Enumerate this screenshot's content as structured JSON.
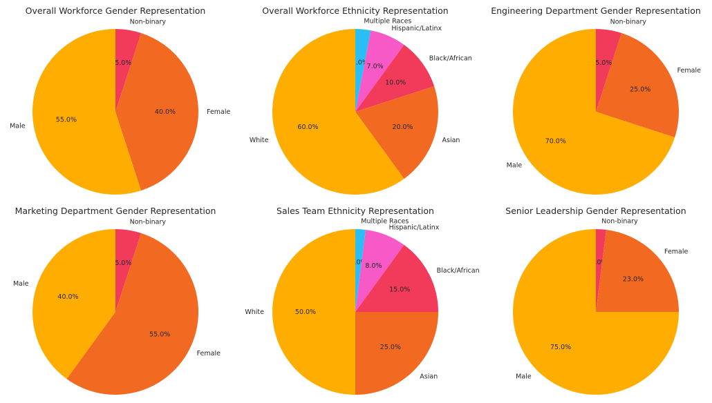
{
  "colors": {
    "male": "#FFAD00",
    "female": "#F26A22",
    "non_binary": "#F23B5A",
    "white": "#FFAD00",
    "asian": "#F26A22",
    "black_african": "#F23B5A",
    "hispanic_latinx": "#F75AC6",
    "multiple_races": "#2BBEF5"
  },
  "chart_data": [
    {
      "type": "pie",
      "title": "Overall Workforce Gender Representation",
      "slices": [
        {
          "label": "Non-binary",
          "value": 5.0,
          "pct_text": "5.0%",
          "color_key": "non_binary"
        },
        {
          "label": "Female",
          "value": 40.0,
          "pct_text": "40.0%",
          "color_key": "female"
        },
        {
          "label": "Male",
          "value": 55.0,
          "pct_text": "55.0%",
          "color_key": "male"
        }
      ]
    },
    {
      "type": "pie",
      "title": "Overall Workforce Ethnicity Representation",
      "slices": [
        {
          "label": "Multiple Races",
          "value": 3.0,
          "pct_text": "3.0%",
          "color_key": "multiple_races"
        },
        {
          "label": "Hispanic/Latinx",
          "value": 7.0,
          "pct_text": "7.0%",
          "color_key": "hispanic_latinx"
        },
        {
          "label": "Black/African",
          "value": 10.0,
          "pct_text": "10.0%",
          "color_key": "black_african"
        },
        {
          "label": "Asian",
          "value": 20.0,
          "pct_text": "20.0%",
          "color_key": "asian"
        },
        {
          "label": "White",
          "value": 60.0,
          "pct_text": "60.0%",
          "color_key": "white"
        }
      ]
    },
    {
      "type": "pie",
      "title": "Engineering Department Gender Representation",
      "slices": [
        {
          "label": "Non-binary",
          "value": 5.0,
          "pct_text": "5.0%",
          "color_key": "non_binary"
        },
        {
          "label": "Female",
          "value": 25.0,
          "pct_text": "25.0%",
          "color_key": "female"
        },
        {
          "label": "Male",
          "value": 70.0,
          "pct_text": "70.0%",
          "color_key": "male"
        }
      ]
    },
    {
      "type": "pie",
      "title": "Marketing Department Gender Representation",
      "slices": [
        {
          "label": "Non-binary",
          "value": 5.0,
          "pct_text": "5.0%",
          "color_key": "non_binary"
        },
        {
          "label": "Female",
          "value": 55.0,
          "pct_text": "55.0%",
          "color_key": "female"
        },
        {
          "label": "Male",
          "value": 40.0,
          "pct_text": "40.0%",
          "color_key": "male"
        }
      ]
    },
    {
      "type": "pie",
      "title": "Sales Team Ethnicity Representation",
      "slices": [
        {
          "label": "Multiple Races",
          "value": 2.0,
          "pct_text": "2.0%",
          "color_key": "multiple_races"
        },
        {
          "label": "Hispanic/Latinx",
          "value": 8.0,
          "pct_text": "8.0%",
          "color_key": "hispanic_latinx"
        },
        {
          "label": "Black/African",
          "value": 15.0,
          "pct_text": "15.0%",
          "color_key": "black_african"
        },
        {
          "label": "Asian",
          "value": 25.0,
          "pct_text": "25.0%",
          "color_key": "asian"
        },
        {
          "label": "White",
          "value": 50.0,
          "pct_text": "50.0%",
          "color_key": "white"
        }
      ]
    },
    {
      "type": "pie",
      "title": "Senior Leadership Gender Representation",
      "slices": [
        {
          "label": "Non-binary",
          "value": 2.0,
          "pct_text": "2.0%",
          "color_key": "non_binary"
        },
        {
          "label": "Female",
          "value": 23.0,
          "pct_text": "23.0%",
          "color_key": "female"
        },
        {
          "label": "Male",
          "value": 75.0,
          "pct_text": "75.0%",
          "color_key": "male"
        }
      ]
    }
  ]
}
